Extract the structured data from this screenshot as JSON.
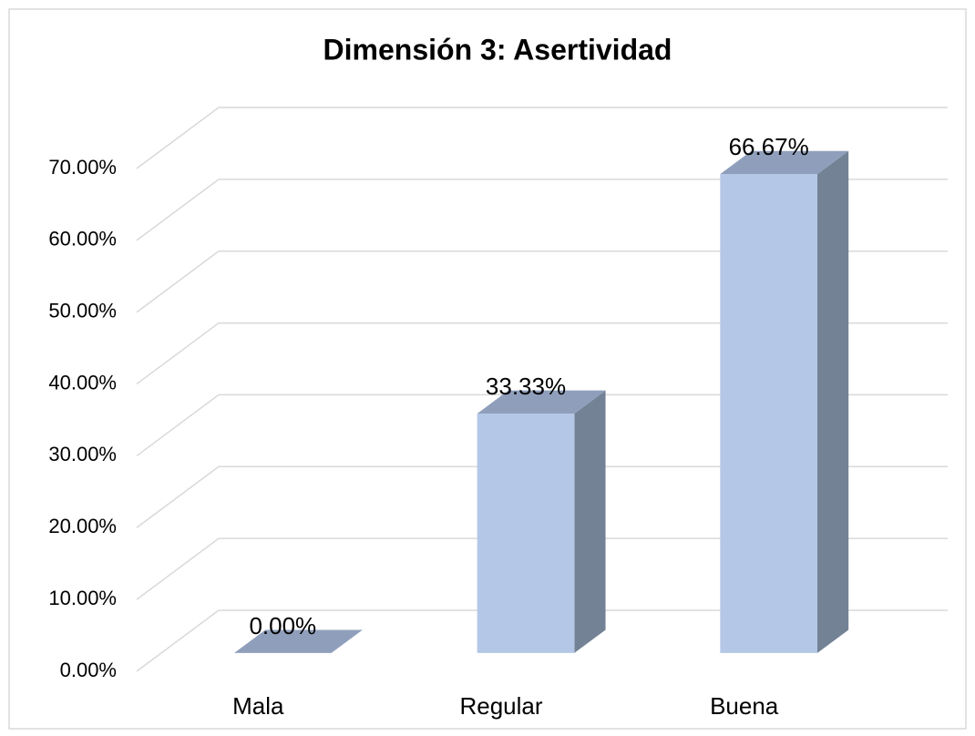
{
  "chart_data": {
    "type": "bar3d",
    "title": "Dimensión 3: Asertividad",
    "categories": [
      "Mala",
      "Regular",
      "Buena"
    ],
    "values": [
      0,
      33.33,
      66.67
    ],
    "value_labels": [
      "0.00%",
      "33.33%",
      "66.67%"
    ],
    "colors": {
      "front": "#b4c7e7",
      "side": "#748296",
      "top": "#8f9fbb"
    },
    "ylim": [
      0,
      70
    ],
    "yticks": [
      {
        "value": 0,
        "label": "0.00%"
      },
      {
        "value": 10,
        "label": "10.00%"
      },
      {
        "value": 20,
        "label": "20.00%"
      },
      {
        "value": 30,
        "label": "30.00%"
      },
      {
        "value": 40,
        "label": "40.00%"
      },
      {
        "value": 50,
        "label": "50.00%"
      },
      {
        "value": 60,
        "label": "60.00%"
      },
      {
        "value": 70,
        "label": "70.00%"
      }
    ],
    "grid": true
  }
}
